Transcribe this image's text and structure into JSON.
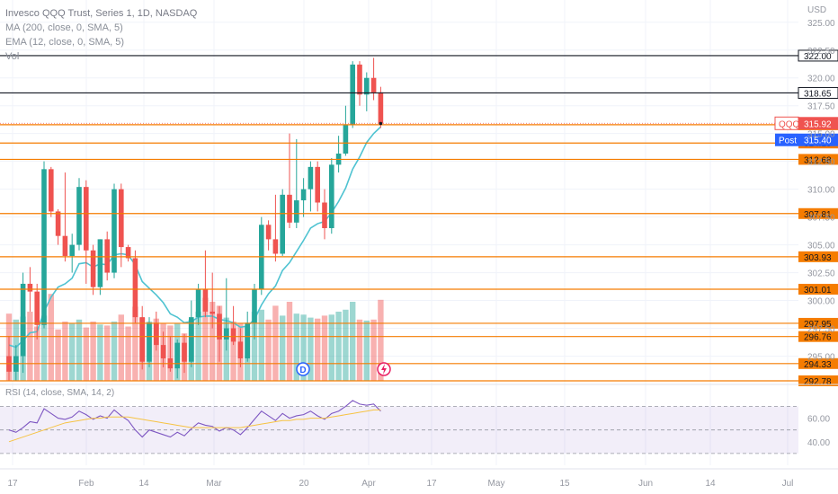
{
  "legend": {
    "title": "Invesco QQQ Trust, Series 1, 1D, NASDAQ",
    "ma": "MA (200, close, 0, SMA, 5)",
    "ema": "EMA (12, close, 0, SMA, 5)",
    "vol": "Vol",
    "rsi": "RSI (14, close, SMA, 14, 2)"
  },
  "currency": "USD",
  "colors": {
    "up": "#26a69a",
    "down": "#ef5350",
    "ema": "#4fc3d1",
    "rsi": "#7e57c2",
    "rsi_ma": "#f6c343",
    "level_orange": "#f57c00",
    "level_black": "#131722",
    "qqq_tag": "#ef5350",
    "post_tag": "#2962ff"
  },
  "chart_data": {
    "type": "candlestick",
    "title": "Invesco QQQ Trust, Series 1, 1D, NASDAQ",
    "ylim": [
      292.78,
      327.0
    ],
    "y_ticks": [
      325.0,
      322.5,
      320.0,
      317.5,
      315.0,
      312.5,
      310.0,
      307.5,
      305.0,
      302.5,
      300.0,
      297.5,
      295.0
    ],
    "x_labels": [
      "17",
      "Feb",
      "14",
      "Mar",
      "20",
      "Apr",
      "17",
      "May",
      "15",
      "Jun",
      "14",
      "Jul"
    ],
    "levels": [
      {
        "value": 322.0,
        "label": "322.00",
        "color": "black"
      },
      {
        "value": 318.65,
        "label": "318.65",
        "color": "black"
      },
      {
        "value": 315.79,
        "label": "315.79",
        "color": "orange"
      },
      {
        "value": 314.15,
        "label": "314.15",
        "color": "orange"
      },
      {
        "value": 312.68,
        "label": "312.68",
        "color": "orange"
      },
      {
        "value": 307.81,
        "label": "307.81",
        "color": "orange"
      },
      {
        "value": 303.93,
        "label": "303.93",
        "color": "orange"
      },
      {
        "value": 301.01,
        "label": "301.01",
        "color": "orange"
      },
      {
        "value": 297.95,
        "label": "297.95",
        "color": "orange"
      },
      {
        "value": 296.76,
        "label": "296.76",
        "color": "orange"
      },
      {
        "value": 294.33,
        "label": "294.33",
        "color": "orange"
      },
      {
        "value": 292.78,
        "label": "292.78",
        "color": "orange"
      }
    ],
    "price_tags": [
      {
        "name": "QQQ",
        "value": 315.92,
        "label": "315.92"
      },
      {
        "name": "Post",
        "value": 315.4,
        "label": "315.40"
      }
    ],
    "candles": [
      {
        "o": 295.0,
        "h": 296.8,
        "l": 292.8,
        "c": 293.6
      },
      {
        "o": 293.6,
        "h": 296.0,
        "l": 292.8,
        "c": 295.0
      },
      {
        "o": 295.0,
        "h": 302.5,
        "l": 293.5,
        "c": 301.5
      },
      {
        "o": 301.5,
        "h": 303.0,
        "l": 299.0,
        "c": 300.8
      },
      {
        "o": 300.8,
        "h": 301.5,
        "l": 296.5,
        "c": 297.8
      },
      {
        "o": 297.8,
        "h": 312.5,
        "l": 297.5,
        "c": 311.8
      },
      {
        "o": 311.8,
        "h": 312.0,
        "l": 307.5,
        "c": 308.0
      },
      {
        "o": 308.0,
        "h": 308.2,
        "l": 305.0,
        "c": 305.8
      },
      {
        "o": 305.8,
        "h": 311.5,
        "l": 303.5,
        "c": 304.0
      },
      {
        "o": 304.0,
        "h": 306.0,
        "l": 302.5,
        "c": 305.0
      },
      {
        "o": 305.0,
        "h": 311.0,
        "l": 304.5,
        "c": 310.2
      },
      {
        "o": 310.2,
        "h": 310.8,
        "l": 301.5,
        "c": 304.5
      },
      {
        "o": 304.5,
        "h": 305.0,
        "l": 300.5,
        "c": 301.2
      },
      {
        "o": 301.2,
        "h": 305.5,
        "l": 300.5,
        "c": 305.5
      },
      {
        "o": 305.5,
        "h": 306.2,
        "l": 301.8,
        "c": 302.5
      },
      {
        "o": 302.5,
        "h": 310.5,
        "l": 302.0,
        "c": 310.0
      },
      {
        "o": 310.0,
        "h": 310.5,
        "l": 303.0,
        "c": 304.8
      },
      {
        "o": 304.8,
        "h": 305.0,
        "l": 303.5,
        "c": 303.8
      },
      {
        "o": 303.8,
        "h": 304.5,
        "l": 298.0,
        "c": 298.5
      },
      {
        "o": 298.5,
        "h": 299.5,
        "l": 293.8,
        "c": 294.5
      },
      {
        "o": 294.5,
        "h": 298.5,
        "l": 294.0,
        "c": 298.0
      },
      {
        "o": 298.0,
        "h": 299.0,
        "l": 295.5,
        "c": 296.0
      },
      {
        "o": 296.0,
        "h": 297.2,
        "l": 294.0,
        "c": 294.8
      },
      {
        "o": 294.8,
        "h": 296.8,
        "l": 293.6,
        "c": 293.9
      },
      {
        "o": 293.9,
        "h": 296.5,
        "l": 293.0,
        "c": 296.2
      },
      {
        "o": 296.2,
        "h": 297.0,
        "l": 293.5,
        "c": 294.5
      },
      {
        "o": 294.5,
        "h": 300.0,
        "l": 294.0,
        "c": 298.5
      },
      {
        "o": 298.5,
        "h": 301.5,
        "l": 297.8,
        "c": 301.0
      },
      {
        "o": 301.0,
        "h": 304.5,
        "l": 298.5,
        "c": 299.0
      },
      {
        "o": 299.0,
        "h": 302.5,
        "l": 297.5,
        "c": 298.8
      },
      {
        "o": 298.8,
        "h": 299.5,
        "l": 294.5,
        "c": 296.5
      },
      {
        "o": 296.5,
        "h": 302.0,
        "l": 295.5,
        "c": 297.5
      },
      {
        "o": 297.5,
        "h": 299.5,
        "l": 296.0,
        "c": 296.3
      },
      {
        "o": 296.3,
        "h": 297.5,
        "l": 294.0,
        "c": 294.8
      },
      {
        "o": 294.8,
        "h": 299.0,
        "l": 294.5,
        "c": 298.0
      },
      {
        "o": 298.0,
        "h": 301.5,
        "l": 296.5,
        "c": 301.0
      },
      {
        "o": 301.0,
        "h": 307.5,
        "l": 300.5,
        "c": 306.8
      },
      {
        "o": 306.8,
        "h": 307.2,
        "l": 304.5,
        "c": 305.5
      },
      {
        "o": 305.5,
        "h": 309.5,
        "l": 303.5,
        "c": 304.2
      },
      {
        "o": 304.2,
        "h": 310.0,
        "l": 304.0,
        "c": 309.5
      },
      {
        "o": 309.5,
        "h": 315.0,
        "l": 306.5,
        "c": 307.0
      },
      {
        "o": 307.0,
        "h": 314.5,
        "l": 306.5,
        "c": 309.0
      },
      {
        "o": 309.0,
        "h": 311.0,
        "l": 307.5,
        "c": 310.0
      },
      {
        "o": 310.0,
        "h": 312.5,
        "l": 308.0,
        "c": 312.0
      },
      {
        "o": 312.0,
        "h": 312.5,
        "l": 308.0,
        "c": 308.8
      },
      {
        "o": 308.8,
        "h": 310.0,
        "l": 305.5,
        "c": 306.5
      },
      {
        "o": 306.5,
        "h": 312.8,
        "l": 306.0,
        "c": 312.2
      },
      {
        "o": 312.2,
        "h": 314.8,
        "l": 311.5,
        "c": 313.2
      },
      {
        "o": 313.2,
        "h": 317.5,
        "l": 313.0,
        "c": 315.8
      },
      {
        "o": 315.8,
        "h": 321.5,
        "l": 315.5,
        "c": 321.2
      },
      {
        "o": 321.2,
        "h": 321.5,
        "l": 317.5,
        "c": 318.5
      },
      {
        "o": 318.5,
        "h": 320.5,
        "l": 317.0,
        "c": 320.0
      },
      {
        "o": 320.0,
        "h": 321.8,
        "l": 318.0,
        "c": 318.7
      },
      {
        "o": 318.7,
        "h": 319.2,
        "l": 315.5,
        "c": 315.9
      }
    ],
    "ema": [
      296.0,
      295.8,
      296.4,
      297.1,
      297.2,
      299.0,
      300.3,
      301.2,
      301.5,
      302.0,
      303.3,
      303.4,
      303.0,
      303.3,
      303.2,
      304.1,
      304.2,
      304.1,
      303.2,
      301.7,
      301.1,
      300.5,
      299.8,
      298.8,
      298.5,
      298.0,
      298.1,
      298.5,
      298.6,
      298.6,
      298.3,
      298.2,
      298.0,
      297.6,
      297.7,
      298.3,
      299.6,
      300.6,
      301.3,
      302.7,
      303.4,
      304.4,
      305.4,
      306.5,
      306.9,
      307.1,
      307.9,
      308.9,
      310.1,
      311.8,
      312.9,
      314.2,
      315.0,
      315.6
    ],
    "volume": [
      68,
      62,
      65,
      70,
      55,
      66,
      88,
      52,
      60,
      58,
      62,
      54,
      60,
      57,
      56,
      60,
      67,
      55,
      75,
      64,
      60,
      63,
      58,
      56,
      58,
      48,
      62,
      70,
      84,
      80,
      76,
      64,
      60,
      58,
      55,
      70,
      72,
      62,
      76,
      66,
      80,
      68,
      67,
      64,
      63,
      66,
      67,
      70,
      72,
      80,
      62,
      61,
      62,
      82
    ],
    "rsi": [
      50,
      48,
      52,
      57,
      56,
      68,
      64,
      60,
      59,
      61,
      66,
      63,
      59,
      62,
      60,
      67,
      62,
      58,
      50,
      44,
      50,
      48,
      46,
      44,
      48,
      45,
      51,
      56,
      54,
      53,
      49,
      52,
      50,
      46,
      52,
      59,
      66,
      62,
      58,
      64,
      60,
      62,
      63,
      66,
      62,
      59,
      64,
      66,
      70,
      75,
      72,
      71,
      72,
      66
    ],
    "rsi_ma": [
      40,
      42,
      44,
      46,
      48,
      50,
      52,
      54,
      56,
      57,
      58,
      59,
      60,
      60,
      61,
      61,
      61,
      61,
      60,
      59,
      58,
      57,
      56,
      55,
      54,
      53,
      52,
      52,
      52,
      52,
      52,
      52,
      52,
      52,
      53,
      54,
      55,
      56,
      57,
      58,
      58,
      59,
      59,
      60,
      60,
      60,
      61,
      62,
      63,
      64,
      65,
      66,
      67,
      67
    ],
    "rsi_bands": [
      70,
      50,
      30
    ],
    "rsi_ticks": [
      "60.00",
      "40.00"
    ]
  }
}
